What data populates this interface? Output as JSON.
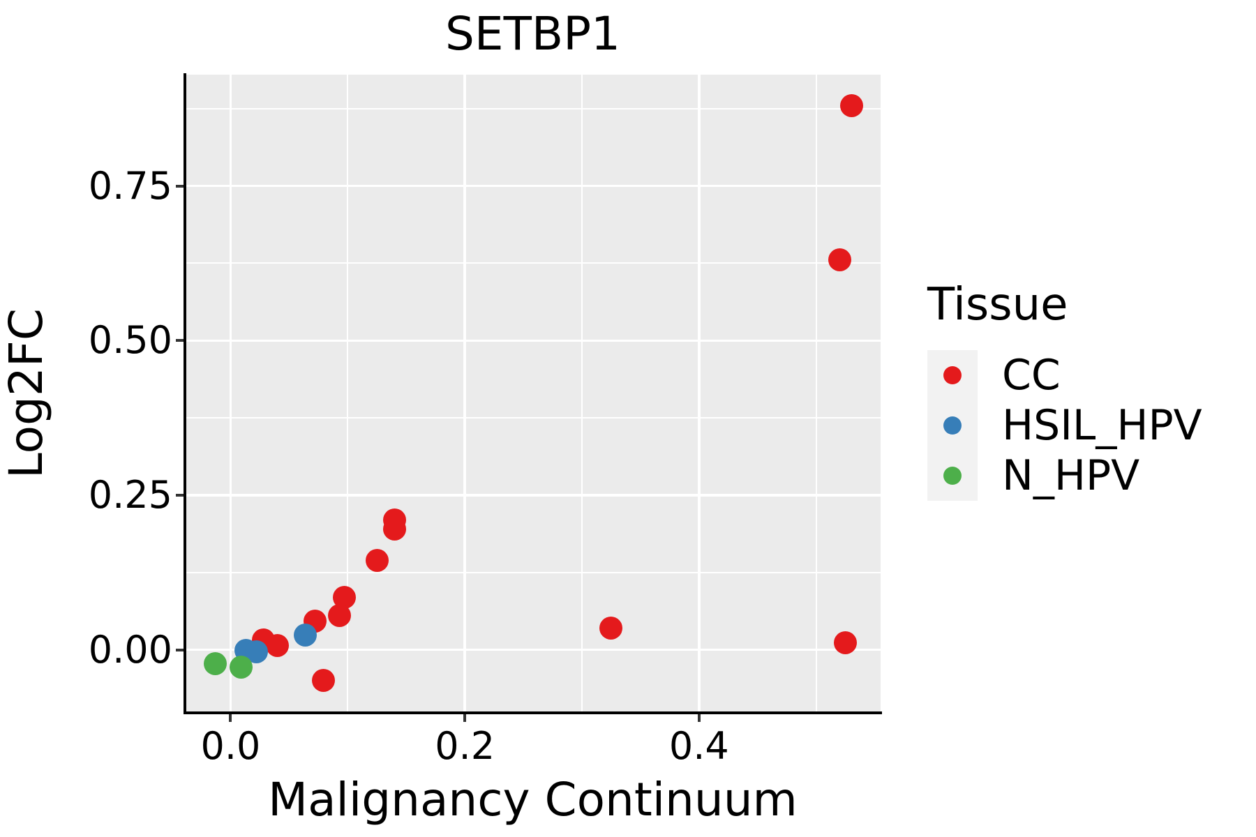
{
  "chart_data": {
    "type": "scatter",
    "title": "SETBP1",
    "xlabel": "Malignancy Continuum",
    "ylabel": "Log2FC",
    "xlim": [
      -0.039,
      0.555
    ],
    "ylim": [
      -0.102,
      0.93
    ],
    "grid": true,
    "panel_bg": "#EBEBEB",
    "grid_color": "#FFFFFF",
    "axis_color": "#000000",
    "tick_color": "#333333",
    "x_ticks": [
      {
        "v": 0.0,
        "label": "0.0"
      },
      {
        "v": 0.2,
        "label": "0.2"
      },
      {
        "v": 0.4,
        "label": "0.4"
      }
    ],
    "y_ticks": [
      {
        "v": 0.0,
        "label": "0.00"
      },
      {
        "v": 0.25,
        "label": "0.25"
      },
      {
        "v": 0.5,
        "label": "0.50"
      },
      {
        "v": 0.75,
        "label": "0.75"
      }
    ],
    "x_minor_ticks": [
      0.1,
      0.3,
      0.5
    ],
    "y_minor_ticks": [
      0.125,
      0.375,
      0.625,
      0.875
    ],
    "legend": {
      "title": "Tissue",
      "position": "right",
      "key_bg": "#F2F2F2",
      "entries": [
        {
          "label": "CC",
          "color": "#E41A1C"
        },
        {
          "label": "HSIL_HPV",
          "color": "#377EB8"
        },
        {
          "label": "N_HPV",
          "color": "#4DAF4A"
        }
      ]
    },
    "series": [
      {
        "name": "CC",
        "color": "#E41A1C",
        "points": [
          [
            0.53,
            0.88
          ],
          [
            0.52,
            0.63
          ],
          [
            0.14,
            0.21
          ],
          [
            0.14,
            0.195
          ],
          [
            0.125,
            0.145
          ],
          [
            0.097,
            0.085
          ],
          [
            0.093,
            0.055
          ],
          [
            0.072,
            0.046
          ],
          [
            0.028,
            0.016
          ],
          [
            0.04,
            0.007
          ],
          [
            0.079,
            -0.05
          ],
          [
            0.325,
            0.035
          ],
          [
            0.525,
            0.011
          ]
        ]
      },
      {
        "name": "HSIL_HPV",
        "color": "#377EB8",
        "points": [
          [
            0.013,
            -0.001
          ],
          [
            0.022,
            -0.003
          ],
          [
            0.064,
            0.024
          ]
        ]
      },
      {
        "name": "N_HPV",
        "color": "#4DAF4A",
        "points": [
          [
            -0.013,
            -0.023
          ],
          [
            0.009,
            -0.028
          ]
        ]
      }
    ]
  }
}
